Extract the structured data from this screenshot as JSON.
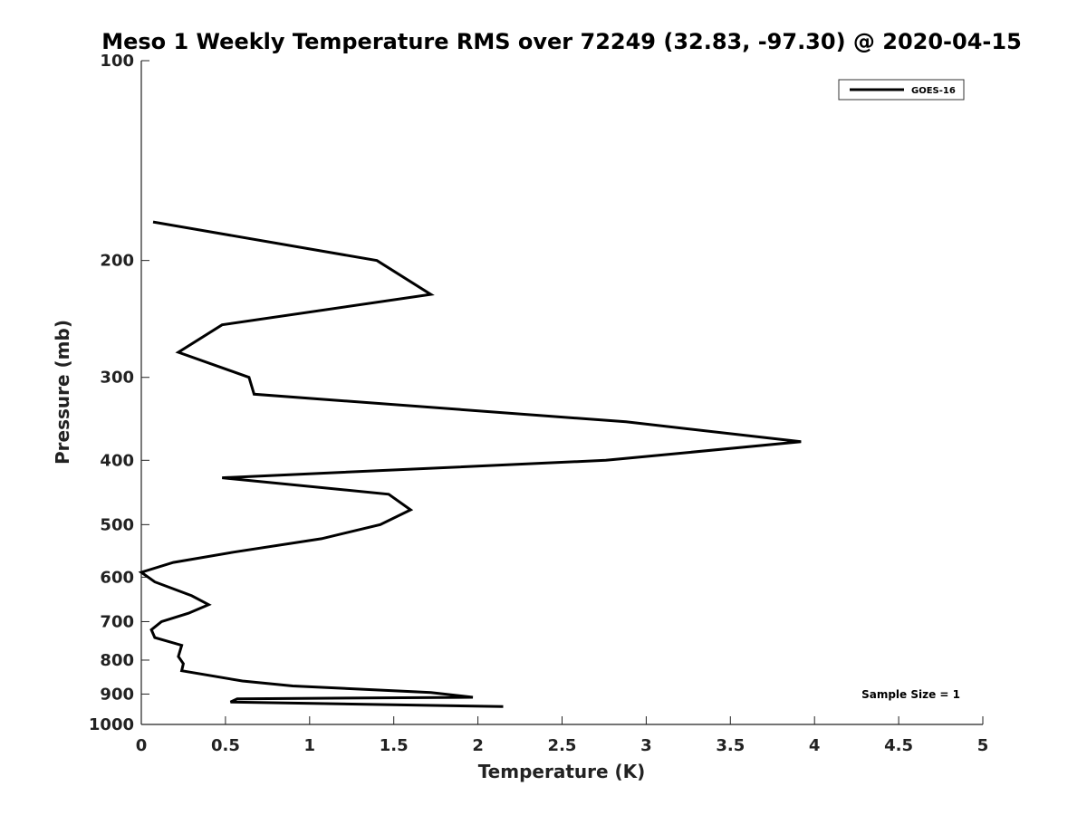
{
  "chart_data": {
    "type": "line",
    "title": "Meso 1 Weekly Temperature RMS over 72249 (32.83, -97.30) @ 2020-04-15",
    "xlabel": "Temperature (K)",
    "ylabel": "Pressure (mb)",
    "xlim": [
      0,
      5
    ],
    "ylim": [
      100,
      1000
    ],
    "y_scale": "log",
    "y_inverted": true,
    "grid": false,
    "legend_position": "top-right",
    "x_ticks": [
      "0",
      "0.5",
      "1",
      "1.5",
      "2",
      "2.5",
      "3",
      "3.5",
      "4",
      "4.5",
      "5"
    ],
    "y_ticks": [
      "100",
      "200",
      "300",
      "400",
      "500",
      "600",
      "700",
      "800",
      "900",
      "1000"
    ],
    "series": [
      {
        "name": "GOES-16",
        "color": "#000000",
        "points": [
          [
            0.07,
            175
          ],
          [
            1.4,
            200
          ],
          [
            1.72,
            225
          ],
          [
            0.48,
            250
          ],
          [
            0.22,
            275
          ],
          [
            0.64,
            300
          ],
          [
            0.67,
            318
          ],
          [
            2.88,
            350
          ],
          [
            3.92,
            375
          ],
          [
            2.76,
            400
          ],
          [
            0.48,
            425
          ],
          [
            1.47,
            450
          ],
          [
            1.6,
            475
          ],
          [
            1.42,
            500
          ],
          [
            1.07,
            525
          ],
          [
            0.55,
            550
          ],
          [
            0.19,
            570
          ],
          [
            0.0,
            590
          ],
          [
            0.08,
            610
          ],
          [
            0.3,
            640
          ],
          [
            0.4,
            660
          ],
          [
            0.28,
            680
          ],
          [
            0.12,
            700
          ],
          [
            0.06,
            720
          ],
          [
            0.08,
            740
          ],
          [
            0.24,
            760
          ],
          [
            0.22,
            790
          ],
          [
            0.25,
            810
          ],
          [
            0.24,
            830
          ],
          [
            0.6,
            860
          ],
          [
            0.9,
            875
          ],
          [
            1.72,
            895
          ],
          [
            1.97,
            910
          ],
          [
            0.57,
            915
          ],
          [
            0.53,
            925
          ],
          [
            2.15,
            940
          ]
        ]
      }
    ],
    "annotations": [
      "Sample Size = 1"
    ]
  }
}
